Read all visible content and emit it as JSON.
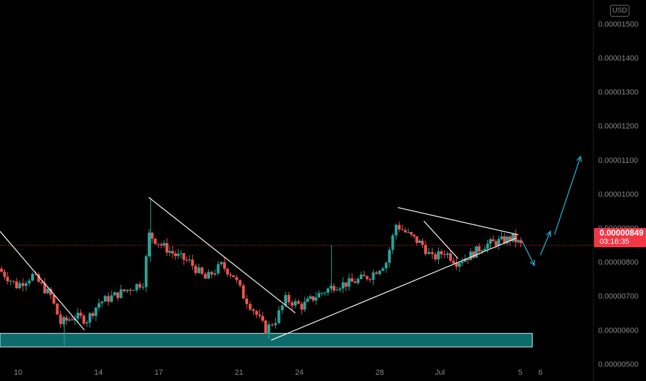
{
  "currency_label": "USD",
  "current_price": "0.00000849",
  "countdown": "03:16:35",
  "colors": {
    "up": "#26a69a",
    "down": "#ef5350",
    "support_zone": "#0e6b6b",
    "trendline": "#ffffff",
    "projection": "#1fa8c4",
    "price_line": "#f23645"
  },
  "chart_data": {
    "type": "candlestick",
    "ylim": [
      4.5e-06,
      1.57e-05
    ],
    "y_ticks": [
      "0.00000500",
      "0.00000600",
      "0.00000700",
      "0.00000800",
      "0.00000900",
      "0.00001000",
      "0.00001100",
      "0.00001200",
      "0.00001300",
      "0.00001400",
      "0.00001500"
    ],
    "x_ticks": [
      "10",
      "14",
      "17",
      "21",
      "24",
      "28",
      "Jul",
      "5",
      "6"
    ],
    "x_tick_days": [
      10,
      14,
      17,
      21,
      24,
      28,
      31,
      35,
      36
    ],
    "day_range": [
      9.1,
      38.6
    ],
    "current_price": 8.49e-06,
    "support_zone": {
      "from_day": 9.1,
      "to_day": 35.6,
      "low": 5.5e-06,
      "high": 5.9e-06
    },
    "trendlines": [
      {
        "from": [
          9.1,
          8.9e-06
        ],
        "to": [
          13.3,
          6e-06
        ]
      },
      {
        "from": [
          16.5,
          9.9e-06
        ],
        "to": [
          23.8,
          6.5e-06
        ]
      },
      {
        "from": [
          22.6,
          5.7e-06
        ],
        "to": [
          34.8,
          8.7e-06
        ]
      },
      {
        "from": [
          28.9,
          9.6e-06
        ],
        "to": [
          34.9,
          8.8e-06
        ]
      },
      {
        "from": [
          30.2,
          9.2e-06
        ],
        "to": [
          31.9,
          8.1e-06
        ]
      }
    ],
    "projection": [
      [
        35.1,
        8.6e-06
      ],
      [
        35.7,
        7.9e-06
      ],
      [
        36.0,
        8.2e-06
      ],
      [
        36.5,
        8.9e-06
      ]
    ],
    "projection_2": [
      [
        36.7,
        8.8e-06
      ],
      [
        38.0,
        1.11e-05
      ]
    ],
    "anchors": [
      [
        9.1,
        7.8e-06
      ],
      [
        10.0,
        7.3e-06
      ],
      [
        10.8,
        7.6e-06
      ],
      [
        11.7,
        7e-06
      ],
      [
        12.2,
        6.2e-06
      ],
      [
        12.9,
        6.4e-06
      ],
      [
        13.5,
        6.3e-06
      ],
      [
        14.1,
        6.8e-06
      ],
      [
        15.2,
        7.1e-06
      ],
      [
        16.3,
        7.4e-06
      ],
      [
        16.6,
        8.8e-06
      ],
      [
        17.2,
        8.5e-06
      ],
      [
        17.9,
        8.2e-06
      ],
      [
        18.6,
        8e-06
      ],
      [
        19.4,
        7.5e-06
      ],
      [
        20.2,
        7.9e-06
      ],
      [
        20.8,
        7.6e-06
      ],
      [
        21.3,
        7e-06
      ],
      [
        21.8,
        6.6e-06
      ],
      [
        22.4,
        6e-06
      ],
      [
        22.9,
        6.3e-06
      ],
      [
        23.4,
        6.9e-06
      ],
      [
        24.2,
        6.7e-06
      ],
      [
        24.9,
        7e-06
      ],
      [
        25.8,
        7.3e-06
      ],
      [
        26.7,
        7.4e-06
      ],
      [
        27.6,
        7.6e-06
      ],
      [
        28.4,
        8e-06
      ],
      [
        28.9,
        9.1e-06
      ],
      [
        29.5,
        8.8e-06
      ],
      [
        30.2,
        8.5e-06
      ],
      [
        30.7,
        8.1e-06
      ],
      [
        31.3,
        8.3e-06
      ],
      [
        31.9,
        8e-06
      ],
      [
        32.6,
        8.2e-06
      ],
      [
        33.3,
        8.5e-06
      ],
      [
        34.0,
        8.6e-06
      ],
      [
        34.7,
        8.7e-06
      ],
      [
        35.1,
        8.5e-06
      ]
    ]
  }
}
